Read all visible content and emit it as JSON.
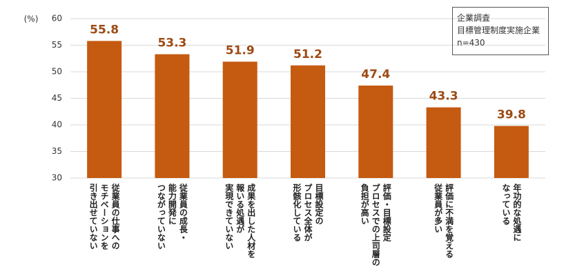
{
  "chart_data": {
    "type": "bar",
    "y_axis_label": "(%)",
    "annotation": [
      "企業調査",
      "目標管理制度実施企業",
      "n=430"
    ],
    "categories": [
      "従業員の仕事への\nモチベーションを\n引き出せていない",
      "従業員の成長・\n能力開発に\nつながっていない",
      "成果を出した人材を\n報いる処遇が\n実現できていない",
      "目標設定の\nプロセス全体が\n形骸化している",
      "評価・目標設定\nプロセスでの上司層の\n負担が高い",
      "評価に不満を覚える\n従業員が多い",
      "年功的な処遇に\nなっている"
    ],
    "values": [
      55.8,
      53.3,
      51.9,
      51.2,
      47.4,
      43.3,
      39.8
    ],
    "color": "#c55a11",
    "value_label_color": "#9c4a14",
    "ylim": [
      30,
      60
    ],
    "yticks": [
      30,
      35,
      40,
      45,
      50,
      55,
      60
    ],
    "grid": true
  }
}
